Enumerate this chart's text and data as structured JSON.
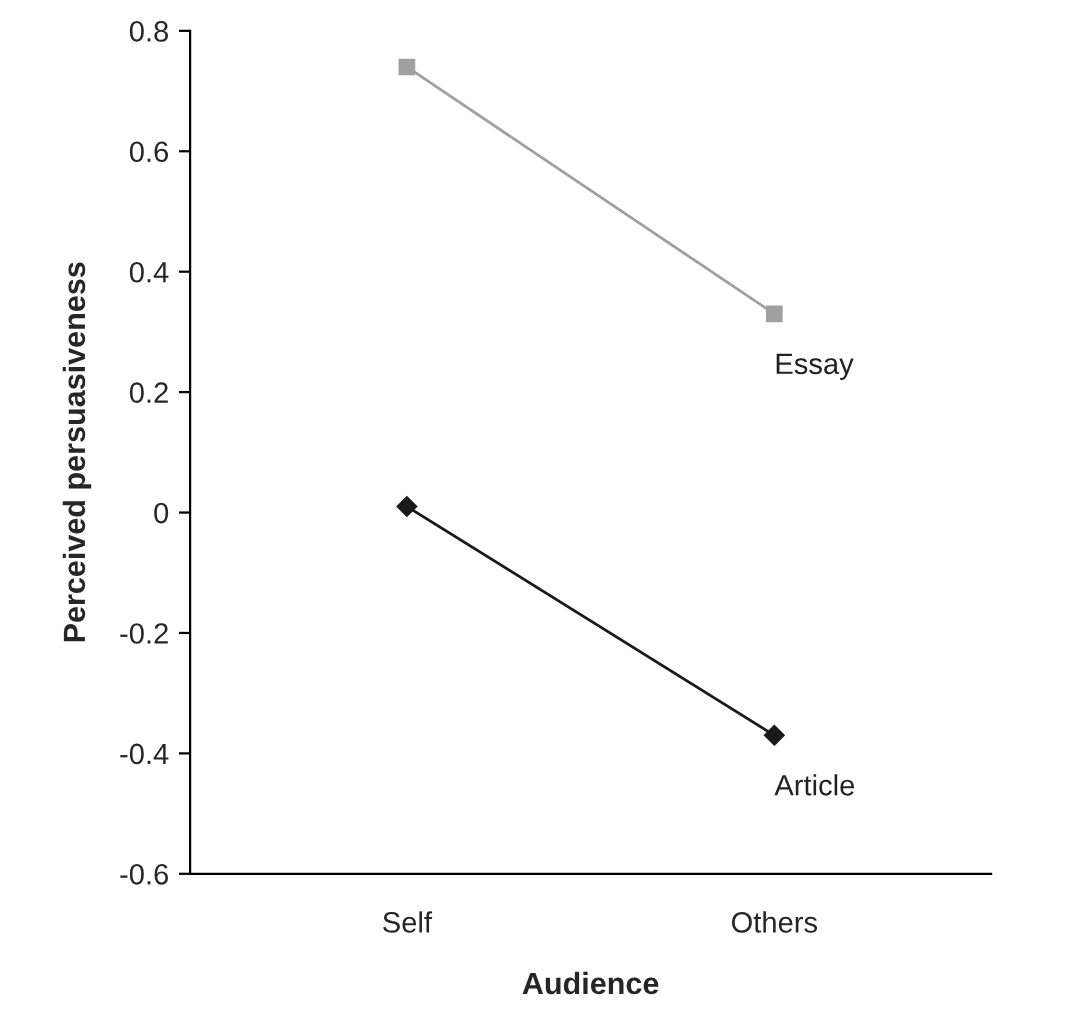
{
  "chart_data": {
    "type": "line",
    "xlabel": "Audience",
    "ylabel": "Perceived persuasiveness",
    "categories": [
      "Self",
      "Others"
    ],
    "series": [
      {
        "name": "Essay",
        "color": "#a0a0a0",
        "marker": "square",
        "values": [
          0.74,
          0.33
        ]
      },
      {
        "name": "Article",
        "color": "#1a1a1a",
        "marker": "diamond",
        "values": [
          0.01,
          -0.37
        ]
      }
    ],
    "ylim": [
      -0.6,
      0.8
    ],
    "yticks": [
      {
        "value": -0.6,
        "label": "-0.6"
      },
      {
        "value": -0.4,
        "label": "-0.4"
      },
      {
        "value": -0.2,
        "label": "-0.2"
      },
      0,
      0.2,
      0.4,
      0.6,
      0.8
    ],
    "grid": false,
    "legend": false
  }
}
